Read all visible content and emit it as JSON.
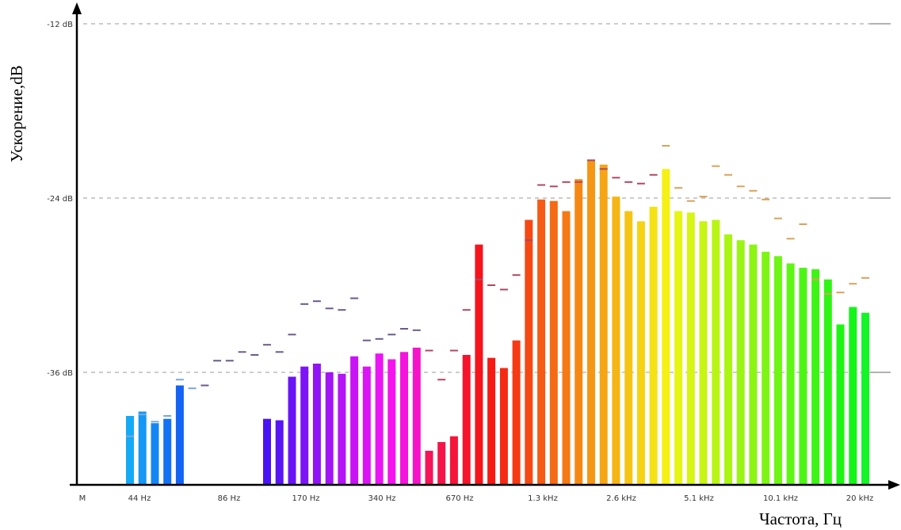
{
  "chart_data": {
    "type": "bar",
    "ylabel": "Ускорение,dB",
    "xlabel": "Частота, Гц",
    "y_ticks": [
      "-12 dB",
      "-24 dB",
      "-36 dB"
    ],
    "y_tick_values": [
      -12,
      -24,
      -36
    ],
    "ylim": [
      -44,
      -12
    ],
    "x_ticks": [
      "M",
      "44 Hz",
      "86 Hz",
      "170 Hz",
      "340 Hz",
      "670 Hz",
      "1.3 kHz",
      "2.6 kHz",
      "5.1 kHz",
      "10.1 kHz",
      "20 kHz"
    ],
    "grid": true,
    "series": [
      {
        "values": [
          -39.0,
          -38.7,
          -39.5,
          -39.2,
          -36.9,
          null,
          null,
          null,
          null,
          null,
          null,
          -39.2,
          -39.3,
          -36.3,
          -35.6,
          -35.4,
          -36.0,
          -36.1,
          -34.9,
          -35.6,
          -34.7,
          -35.1,
          -34.6,
          -34.3,
          -41.4,
          -40.8,
          -40.4,
          -34.8,
          -27.2,
          -35.0,
          -35.7,
          -33.8,
          -25.5,
          -24.1,
          -24.2,
          -24.9,
          -22.7,
          -21.4,
          -21.7,
          -23.9,
          -24.9,
          -25.6,
          -24.6,
          -22.0,
          -24.9,
          -25.0,
          -25.6,
          -25.5,
          -26.5,
          -26.9,
          -27.2,
          -27.7,
          -28.0,
          -28.5,
          -28.8,
          -28.9,
          -29.6,
          -32.7,
          -31.5,
          -31.9
        ]
      }
    ],
    "peak_values": [
      -40.4,
      -38.9,
      -39.4,
      -39.0,
      -36.5,
      -37.1,
      -36.9,
      -35.2,
      -35.2,
      -34.6,
      -34.8,
      -34.1,
      -34.6,
      -33.4,
      -31.3,
      -31.1,
      -31.6,
      -31.7,
      -30.9,
      -33.8,
      -33.7,
      -33.4,
      -33.0,
      -33.1,
      -34.5,
      -36.5,
      -34.5,
      -31.7,
      -29.6,
      -30.0,
      -30.3,
      -29.3,
      -26.9,
      -23.1,
      -23.2,
      -22.9,
      -22.9,
      -21.4,
      -22.0,
      -22.6,
      -22.9,
      -23.0,
      -22.4,
      -20.4,
      -23.3,
      -24.2,
      -23.9,
      -21.8,
      -22.4,
      -23.2,
      -23.5,
      -24.1,
      -25.4,
      -26.8,
      -25.8,
      -29.6,
      -30.6,
      -30.5,
      -29.9,
      -29.5
    ]
  }
}
